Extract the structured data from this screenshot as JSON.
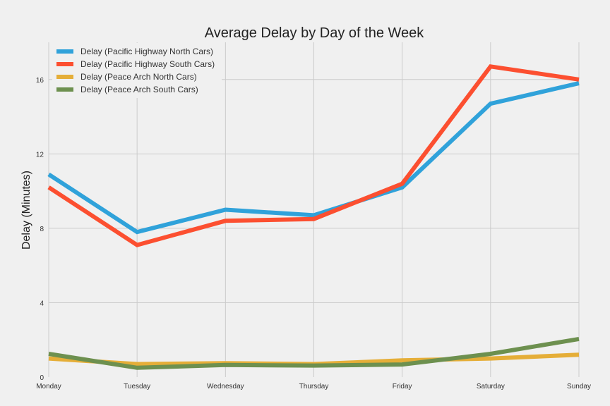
{
  "chart_data": {
    "type": "line",
    "title": "Average Delay by Day of the Week",
    "xlabel": "",
    "ylabel": "Delay (Minutes)",
    "categories": [
      "Monday",
      "Tuesday",
      "Wednesday",
      "Thursday",
      "Friday",
      "Saturday",
      "Sunday"
    ],
    "ylim": [
      0,
      18
    ],
    "yticks": [
      0,
      4,
      8,
      12,
      16
    ],
    "grid": true,
    "legend_position": "top-left",
    "series": [
      {
        "name": "Delay (Pacific Highway North Cars)",
        "color": "#30a2da",
        "values": [
          10.9,
          7.8,
          9.0,
          8.7,
          10.2,
          14.7,
          15.8
        ]
      },
      {
        "name": "Delay (Pacific Highway South Cars)",
        "color": "#fc4f30",
        "values": [
          10.2,
          7.1,
          8.4,
          8.5,
          10.4,
          16.7,
          16.0
        ]
      },
      {
        "name": "Delay (Peace Arch North Cars)",
        "color": "#e5ae38",
        "values": [
          1.0,
          0.7,
          0.75,
          0.7,
          0.9,
          1.0,
          1.2
        ]
      },
      {
        "name": "Delay (Peace Arch South Cars)",
        "color": "#6d904f",
        "values": [
          1.25,
          0.5,
          0.65,
          0.62,
          0.68,
          1.25,
          2.05
        ]
      }
    ]
  }
}
